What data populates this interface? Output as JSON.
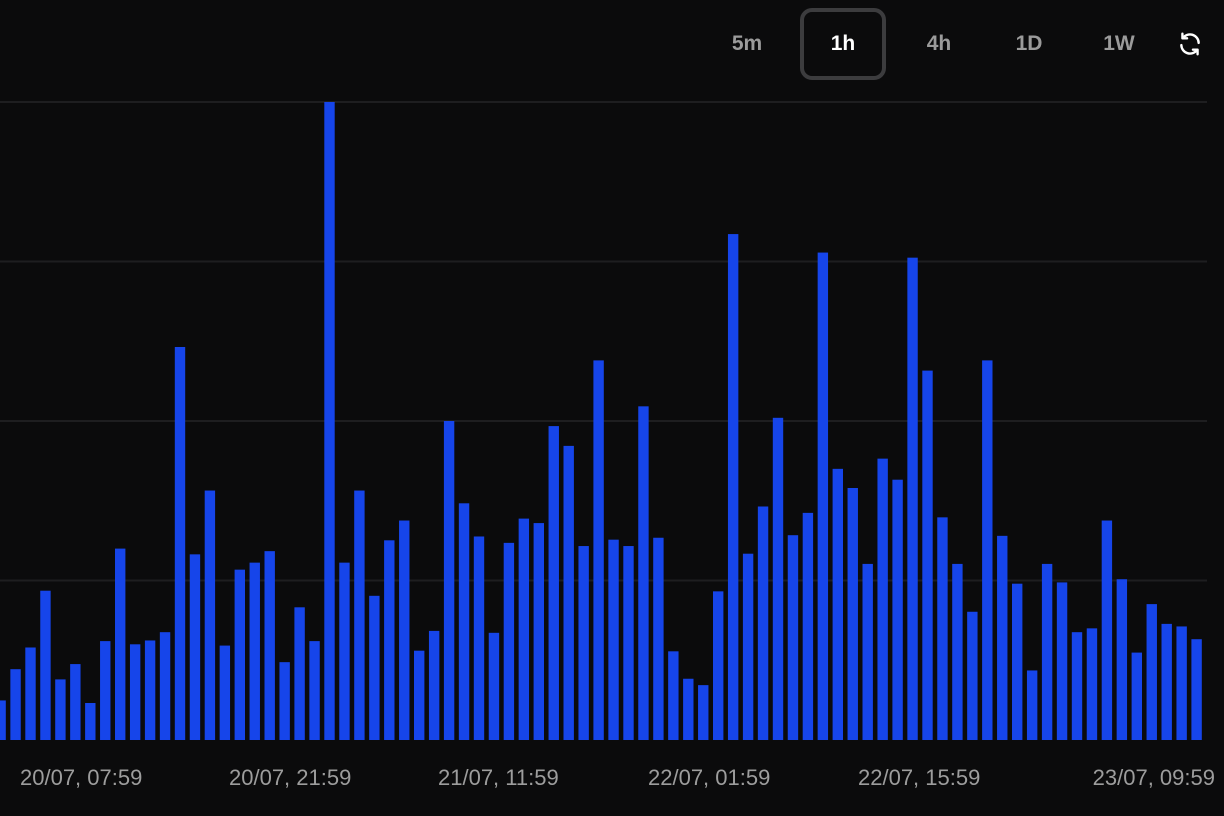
{
  "timeframes": {
    "buttons": [
      "5m",
      "1h",
      "4h",
      "1D",
      "1W"
    ],
    "active": "1h"
  },
  "colors": {
    "bar": "#1645ea",
    "grid": "#1e1e20",
    "background": "#0b0b0c"
  },
  "icons": {
    "refresh": "refresh-icon"
  },
  "chart_data": {
    "type": "bar",
    "grid": true,
    "ylim": [
      0,
      100
    ],
    "x_tick_labels": [
      "20/07, 07:59",
      "20/07, 21:59",
      "21/07, 11:59",
      "22/07, 01:59",
      "22/07, 15:59",
      "23/07, 09:59"
    ],
    "values": [
      6.2,
      11.1,
      14.5,
      23.4,
      9.5,
      11.9,
      5.8,
      15.5,
      30.0,
      15.0,
      15.6,
      16.9,
      61.6,
      29.1,
      39.1,
      14.8,
      26.7,
      27.8,
      29.6,
      12.2,
      20.8,
      15.5,
      100.0,
      27.8,
      39.1,
      22.6,
      31.3,
      34.4,
      14.0,
      17.1,
      50.0,
      37.1,
      31.9,
      16.8,
      30.9,
      34.7,
      34.0,
      49.2,
      46.1,
      30.4,
      59.5,
      31.4,
      30.4,
      52.3,
      31.7,
      13.9,
      9.6,
      8.6,
      23.3,
      79.3,
      29.2,
      36.6,
      50.5,
      32.1,
      35.6,
      76.4,
      42.5,
      39.5,
      27.6,
      44.1,
      40.8,
      75.6,
      57.9,
      34.9,
      27.6,
      20.1,
      59.5,
      32.0,
      24.5,
      10.9,
      27.6,
      24.7,
      16.9,
      17.5,
      34.4,
      25.2,
      13.7,
      21.3,
      18.2,
      17.8,
      15.8
    ]
  }
}
